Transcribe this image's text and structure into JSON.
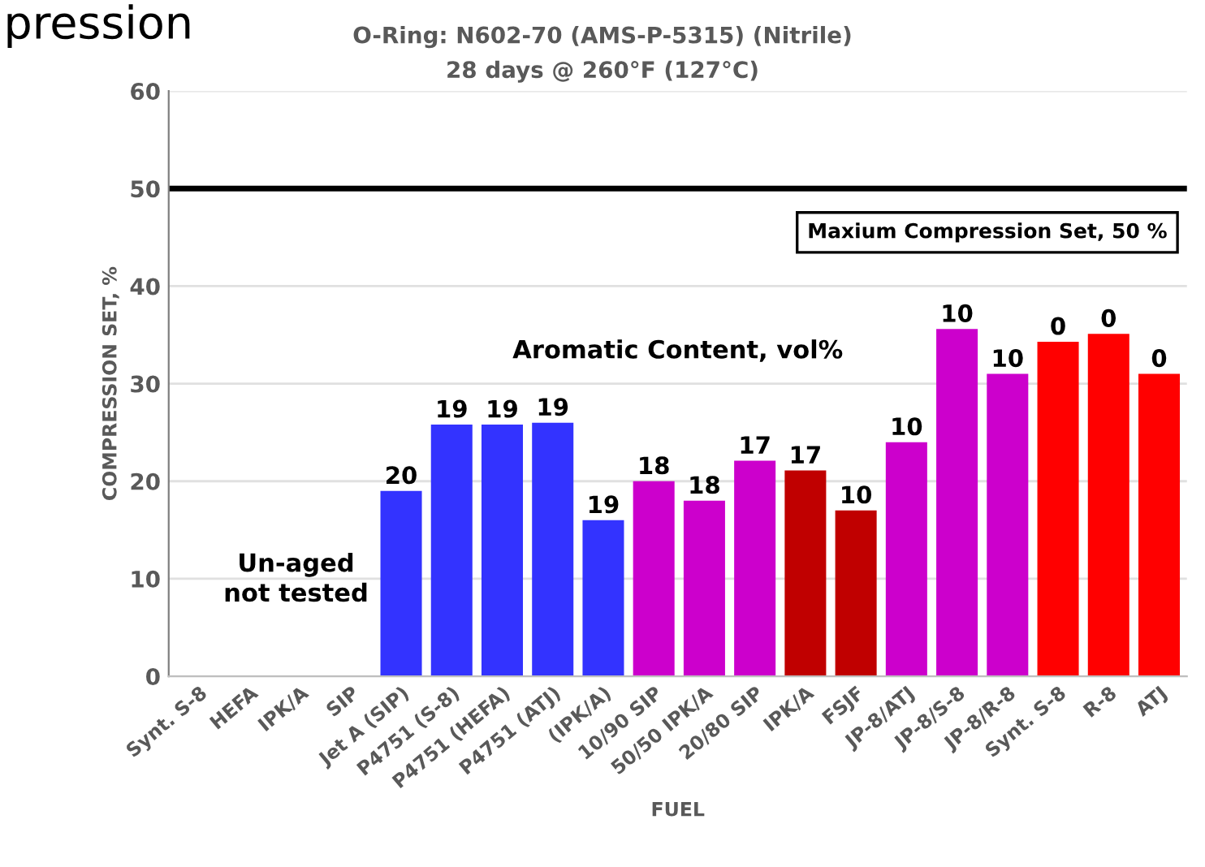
{
  "chart_data": {
    "type": "bar",
    "title": "O-Ring: N602-70 (AMS-P-5315) (Nitrile)",
    "subtitle": "28 days @ 260°F (127°C)",
    "xlabel": "FUEL",
    "ylabel": "COMPRESSION SET, %",
    "categories": [
      "Synt. S-8",
      "HEFA",
      "IPK/A",
      "SIP",
      "Jet A (SIP)",
      "P4751 (S-8)",
      "P4751 (HEFA)",
      "P4751 (ATJ)",
      "(IPK/A)",
      "10/90 SIP",
      "50/50 IPK/A",
      "20/80 SIP",
      "IPK/A",
      "FSJF",
      "JP-8/ATJ",
      "JP-8/S-8",
      "JP-8/R-8",
      "Synt. S-8",
      "R-8",
      "ATJ"
    ],
    "values": [
      null,
      null,
      null,
      null,
      19.0,
      25.8,
      25.8,
      26.0,
      16.0,
      20.0,
      18.0,
      22.1,
      21.1,
      17.0,
      24.0,
      35.6,
      31.0,
      34.3,
      35.1,
      31.0
    ],
    "colors": [
      "#3333ff",
      "#3333ff",
      "#3333ff",
      "#3333ff",
      "#3333ff",
      "#3333ff",
      "#3333ff",
      "#3333ff",
      "#3333ff",
      "#cc00cc",
      "#cc00cc",
      "#cc00cc",
      "#c00000",
      "#c00000",
      "#cc00cc",
      "#cc00cc",
      "#cc00cc",
      "#ff0000",
      "#ff0000",
      "#ff0000"
    ],
    "ylim": [
      0,
      60
    ],
    "yticks": [
      0,
      10,
      20,
      30,
      40,
      50,
      60
    ],
    "grid": "y",
    "ref_lines": [
      {
        "axis": "y",
        "value": 50,
        "label": "Maxium Compression Set, 50 %",
        "color": "#000000"
      }
    ],
    "annotations": [
      "pression",
      "Aromatic Content, vol%",
      "Un-aged\nnot tested",
      {
        "text": "20",
        "x": "Jet A (SIP)",
        "y": 19.0
      },
      {
        "text": "19",
        "x": "P4751 (S-8)",
        "y": 25.8
      },
      {
        "text": "19",
        "x": "P4751 (HEFA)",
        "y": 25.8
      },
      {
        "text": "19",
        "x": "P4751 (ATJ)",
        "y": 26.0
      },
      {
        "text": "19",
        "x": "(IPK/A)",
        "y": 16.0
      },
      {
        "text": "18",
        "x": "10/90 SIP",
        "y": 20.0
      },
      {
        "text": "18",
        "x": "50/50 IPK/A",
        "y": 18.0
      },
      {
        "text": "17",
        "x": "20/80 SIP",
        "y": 22.1
      },
      "17",
      {
        "text": "10",
        "x": "FSJF",
        "y": 17.0
      },
      {
        "text": "10",
        "x": "JP-8/ATJ",
        "y": 24.0
      },
      {
        "text": "10",
        "x": "JP-8/S-8",
        "y": 35.6
      },
      {
        "text": "10",
        "x": "JP-8/R-8",
        "y": 31.0
      },
      "0",
      {
        "text": "0",
        "x": "R-8",
        "y": 35.1
      },
      {
        "text": "0",
        "x": "ATJ",
        "y": 31.0
      }
    ]
  }
}
